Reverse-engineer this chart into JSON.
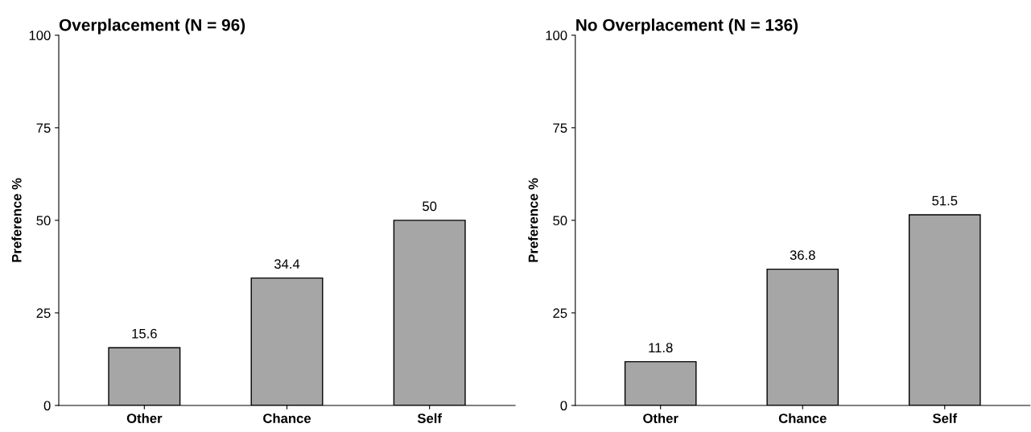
{
  "chart_data": [
    {
      "type": "bar",
      "title": "Overplacement (N = 96)",
      "ylabel": "Preference %",
      "categories": [
        "Other",
        "Chance",
        "Self"
      ],
      "values": [
        15.6,
        34.4,
        50
      ],
      "color": "#a6a6a6",
      "ylim": [
        0,
        100
      ],
      "yticks": [
        0,
        25,
        50,
        75,
        100
      ],
      "grid": false,
      "data_labels": true
    },
    {
      "type": "bar",
      "title": "No Overplacement (N = 136)",
      "ylabel": "Preference %",
      "categories": [
        "Other",
        "Chance",
        "Self"
      ],
      "values": [
        11.8,
        36.8,
        51.5
      ],
      "color": "#a6a6a6",
      "ylim": [
        0,
        100
      ],
      "yticks": [
        0,
        25,
        50,
        75,
        100
      ],
      "grid": false,
      "data_labels": true
    }
  ]
}
